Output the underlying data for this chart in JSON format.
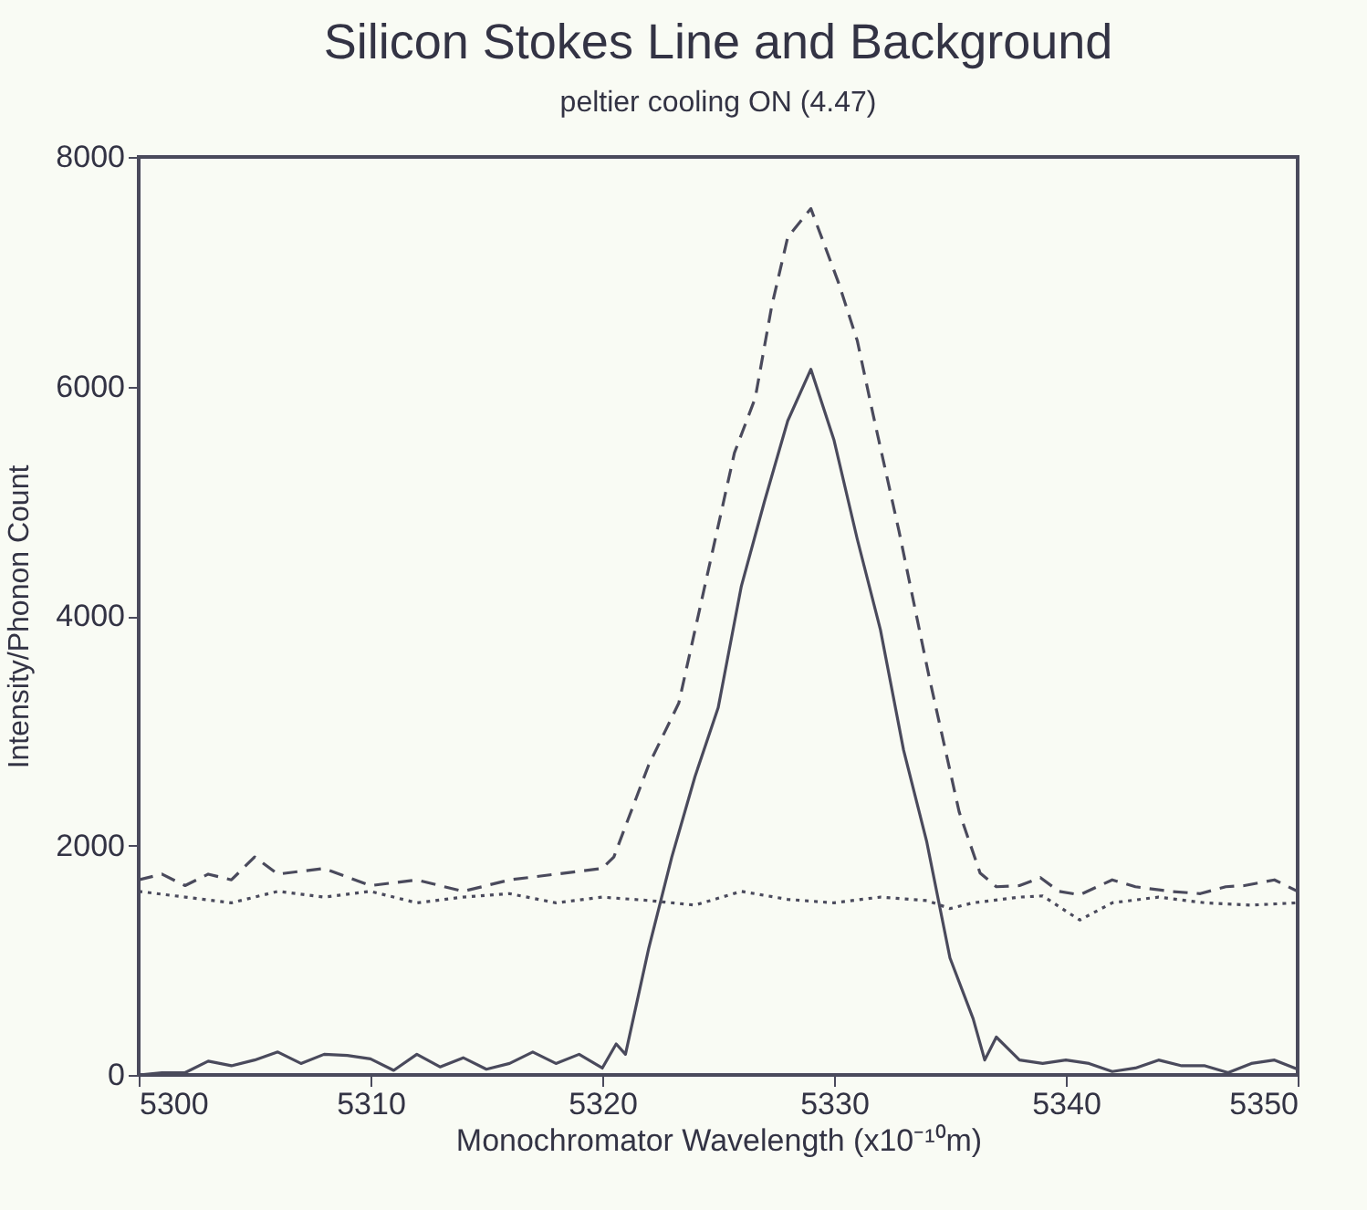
{
  "chart_data": {
    "type": "line",
    "title": "Silicon Stokes Line and Background",
    "subtitle": "peltier cooling ON (4.47)",
    "xlabel": "Monochromator Wavelength (x10⁻¹⁰m)",
    "ylabel": "Intensity/Phonon Count",
    "xlim": [
      5300,
      5350
    ],
    "xticks": [
      5300,
      5310,
      5320,
      5330,
      5340,
      5350
    ],
    "ylim": [
      0,
      8000
    ],
    "yticks": [
      0,
      2000,
      4000,
      6000,
      8000
    ],
    "grid": false,
    "marker": "none",
    "series": [
      {
        "color": "#4a4a5c",
        "line_style": "solid",
        "x": [
          5300,
          5301,
          5302,
          5303,
          5304,
          5305,
          5306,
          5307,
          5308,
          5309,
          5310,
          5311,
          5312,
          5313,
          5314,
          5315,
          5316,
          5317,
          5318,
          5319,
          5320,
          5320.6,
          5321,
          5322,
          5323,
          5324,
          5325,
          5326,
          5327,
          5328,
          5329,
          5330,
          5331,
          5332,
          5333,
          5334,
          5335,
          5336,
          5336.5,
          5337,
          5338,
          5339,
          5340,
          5341,
          5342,
          5343,
          5344,
          5345,
          5346,
          5347,
          5348,
          5349,
          5350
        ],
        "values": [
          0,
          20,
          20,
          120,
          80,
          130,
          200,
          100,
          180,
          170,
          140,
          40,
          180,
          70,
          150,
          50,
          100,
          200,
          100,
          180,
          60,
          270,
          180,
          1100,
          1900,
          2600,
          3200,
          4260,
          5000,
          5700,
          6150,
          5530,
          4670,
          3880,
          2830,
          2030,
          1020,
          490,
          130,
          330,
          130,
          100,
          130,
          100,
          30,
          60,
          130,
          80,
          80,
          20,
          100,
          130,
          50
        ]
      },
      {
        "color": "#4a4a5c",
        "line_style": "dashed",
        "x": [
          5300,
          5301,
          5302,
          5303,
          5304,
          5305,
          5306,
          5308,
          5310,
          5312,
          5314,
          5316,
          5318,
          5320,
          5320.5,
          5322,
          5323.3,
          5325.7,
          5326.6,
          5327.3,
          5328,
          5329,
          5330.2,
          5331,
          5331.7,
          5332.8,
          5334.1,
          5335.4,
          5336.3,
          5337,
          5338,
          5338.9,
          5339.7,
          5340.6,
          5342,
          5343,
          5344.5,
          5345.8,
          5346.9,
          5347.7,
          5349,
          5350
        ],
        "values": [
          1700,
          1750,
          1650,
          1750,
          1700,
          1900,
          1750,
          1800,
          1650,
          1700,
          1600,
          1700,
          1750,
          1800,
          1900,
          2700,
          3240,
          5420,
          5900,
          6690,
          7300,
          7550,
          6900,
          6400,
          5740,
          4740,
          3470,
          2290,
          1760,
          1640,
          1650,
          1720,
          1600,
          1570,
          1700,
          1640,
          1600,
          1580,
          1640,
          1650,
          1700,
          1600
        ]
      },
      {
        "color": "#4a4a5c",
        "line_style": "dotted",
        "x": [
          5300,
          5302,
          5304,
          5306,
          5308,
          5310,
          5312,
          5314,
          5316,
          5318,
          5320,
          5322,
          5324,
          5326,
          5328,
          5330,
          5332,
          5334,
          5335,
          5336,
          5338,
          5339,
          5340.6,
          5342,
          5344,
          5346,
          5348,
          5350
        ],
        "values": [
          1600,
          1550,
          1500,
          1600,
          1550,
          1600,
          1500,
          1550,
          1580,
          1500,
          1550,
          1520,
          1480,
          1600,
          1530,
          1500,
          1550,
          1520,
          1450,
          1500,
          1550,
          1560,
          1350,
          1500,
          1550,
          1500,
          1480,
          1500
        ]
      }
    ]
  }
}
